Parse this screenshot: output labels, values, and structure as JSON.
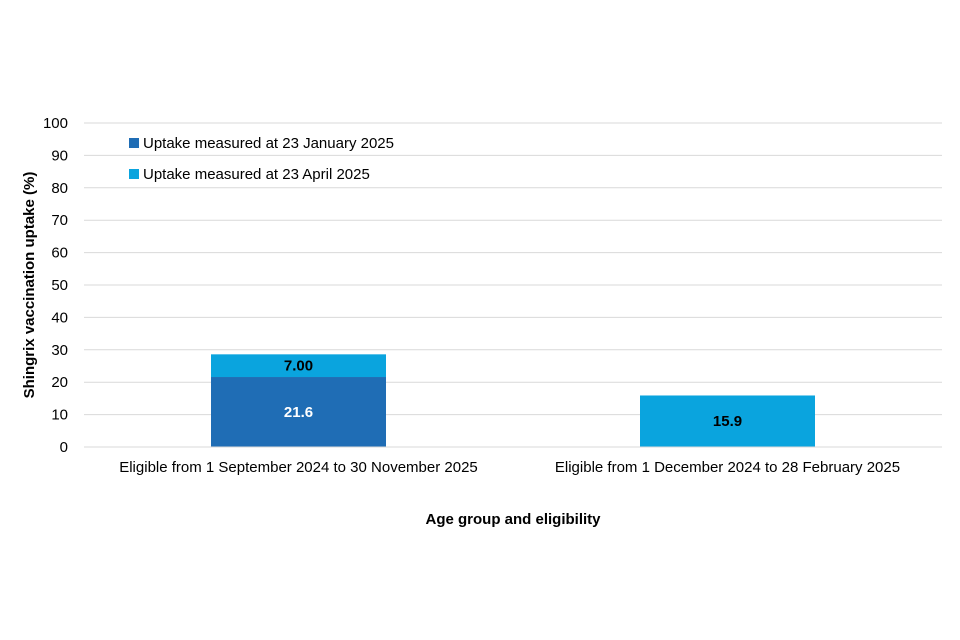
{
  "chart_data": {
    "type": "bar",
    "stacked": true,
    "categories": [
      "Eligible from 1 September 2024 to 30 November 2025",
      "Eligible from 1 December 2024 to 28 February 2025"
    ],
    "series": [
      {
        "name": "Uptake measured at 23 January 2025",
        "values": [
          21.6,
          null
        ],
        "labels": [
          "21.6",
          ""
        ],
        "color": "#1f6db5",
        "label_color": "#ffffff"
      },
      {
        "name": "Uptake measured at 23 April 2025",
        "values": [
          7.0,
          15.9
        ],
        "labels": [
          "7.00",
          "15.9"
        ],
        "color": "#0aa4de",
        "label_color": "#000000"
      }
    ],
    "xlabel": "Age group and eligibility",
    "ylabel": "Shingrix vaccination uptake (%)",
    "ylim": [
      0,
      100
    ],
    "yticks": [
      0,
      10,
      20,
      30,
      40,
      50,
      60,
      70,
      80,
      90,
      100
    ],
    "grid": true,
    "legend_position": "top-left",
    "gridline_color": "#d9d9d9"
  }
}
